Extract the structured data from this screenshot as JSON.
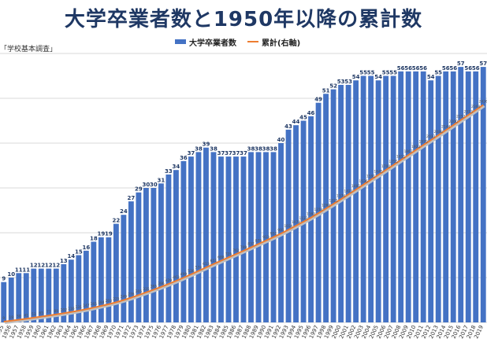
{
  "chart_data": {
    "type": "bar",
    "title": "大学卒業者数と1950年以降の累計数",
    "source": "「学校基本調査」",
    "legend": [
      "大学卒業者数",
      "累計(右軸)"
    ],
    "legend_position": "top-center",
    "grid": true,
    "categories": [
      "1955",
      "1956",
      "1957",
      "1958",
      "1959",
      "1960",
      "1961",
      "1962",
      "1963",
      "1964",
      "1965",
      "1966",
      "1967",
      "1968",
      "1969",
      "1970",
      "1971",
      "1972",
      "1973",
      "1974",
      "1975",
      "1976",
      "1977",
      "1978",
      "1979",
      "1980",
      "1981",
      "1982",
      "1983",
      "1984",
      "1985",
      "1986",
      "1987",
      "1988",
      "1989",
      "1990",
      "1991",
      "1992",
      "1993",
      "1994",
      "1995",
      "1996",
      "1997",
      "1998",
      "1999",
      "2000",
      "2001",
      "2002",
      "2003",
      "2004",
      "2005",
      "2006",
      "2007",
      "2008",
      "2009",
      "2010",
      "2011",
      "2012",
      "2013",
      "2014",
      "2015",
      "2016",
      "2017",
      "2018",
      "2019"
    ],
    "series": [
      {
        "name": "大学卒業者数",
        "type": "bar",
        "color": "#4472c4",
        "values": [
          9,
          10,
          11,
          11,
          12,
          12,
          12,
          12,
          13,
          14,
          15,
          16,
          18,
          19,
          19,
          22,
          24,
          27,
          29,
          30,
          30,
          31,
          33,
          34,
          36,
          37,
          38,
          39,
          38,
          37,
          37,
          37,
          37,
          38,
          38,
          38,
          38,
          40,
          43,
          44,
          45,
          46,
          49,
          51,
          52,
          53,
          53,
          54,
          55,
          55,
          54,
          55,
          55,
          56,
          56,
          56,
          56,
          54,
          55,
          56,
          56,
          57,
          56,
          56,
          57
        ]
      },
      {
        "name": "累計(右軸)",
        "type": "line",
        "axis": "right",
        "color": "#ed7d31",
        "values": [
          9,
          19,
          30,
          41,
          53,
          65,
          77,
          89,
          102,
          116,
          131,
          147,
          165,
          184,
          203,
          225,
          249,
          276,
          305,
          335,
          365,
          396,
          429,
          463,
          499,
          536,
          574,
          613,
          651,
          688,
          725,
          762,
          799,
          837,
          875,
          913,
          951,
          991,
          1034,
          1078,
          1123,
          1169,
          1218,
          1269,
          1321,
          1374,
          1427,
          1481,
          1536,
          1591,
          1645,
          1700,
          1755,
          1811,
          1867,
          1923,
          1979,
          2033,
          2088,
          2144,
          2200,
          2257,
          2313,
          2369,
          2426
        ]
      }
    ],
    "ylim": [
      0,
      60
    ],
    "y2lim": [
      0,
      3000
    ]
  }
}
